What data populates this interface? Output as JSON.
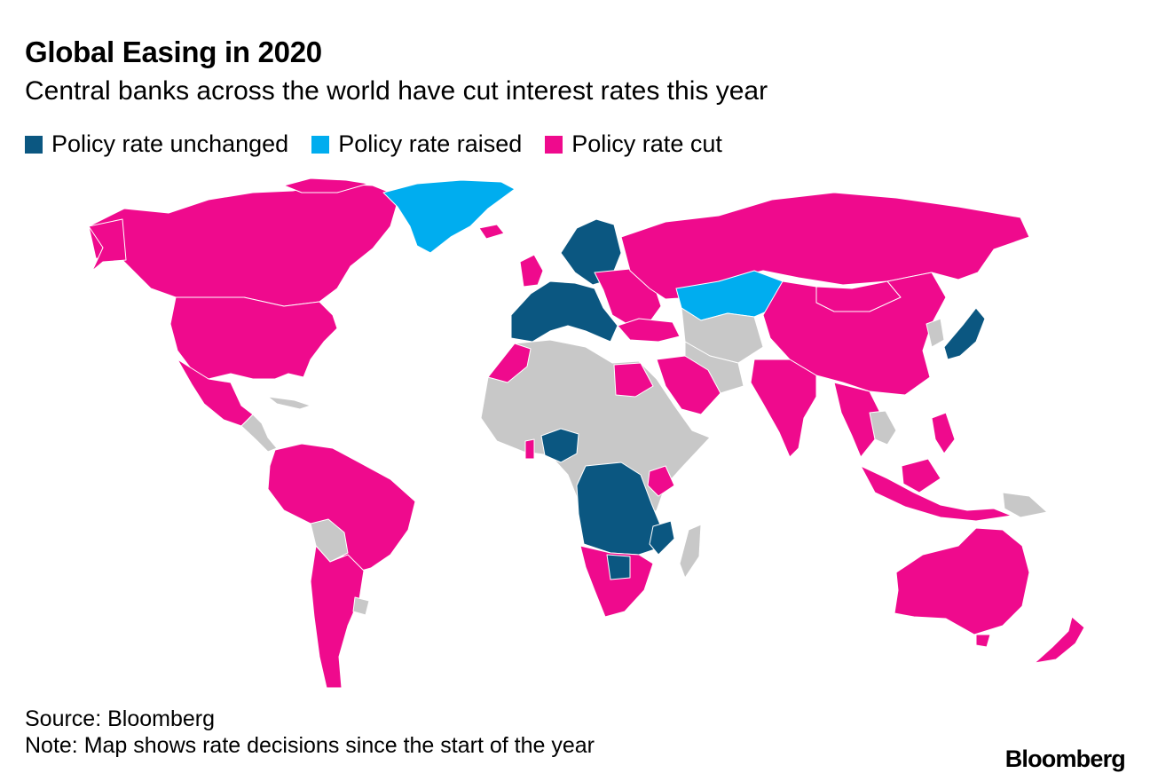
{
  "header": {
    "title": "Global Easing in 2020",
    "subtitle": "Central banks across the world have cut interest rates this year"
  },
  "legend": [
    {
      "label": "Policy rate unchanged",
      "color": "#0b5781"
    },
    {
      "label": "Policy rate raised",
      "color": "#00adef"
    },
    {
      "label": "Policy rate cut",
      "color": "#ef0a8d"
    }
  ],
  "colors": {
    "unchanged": "#0b5781",
    "raised": "#00adef",
    "cut": "#ef0a8d",
    "no_data": "#c8c8c8"
  },
  "map": {
    "regions": [
      {
        "name": "Canada",
        "status": "cut"
      },
      {
        "name": "United States",
        "status": "cut"
      },
      {
        "name": "Mexico",
        "status": "cut"
      },
      {
        "name": "Greenland",
        "status": "raised"
      },
      {
        "name": "Kazakhstan",
        "status": "raised"
      },
      {
        "name": "Russia",
        "status": "cut"
      },
      {
        "name": "China",
        "status": "cut"
      },
      {
        "name": "India",
        "status": "cut"
      },
      {
        "name": "Japan",
        "status": "unchanged"
      },
      {
        "name": "Euro area",
        "status": "unchanged"
      },
      {
        "name": "Nigeria",
        "status": "unchanged"
      },
      {
        "name": "Brazil",
        "status": "cut"
      },
      {
        "name": "Australia",
        "status": "cut"
      },
      {
        "name": "South Africa",
        "status": "cut"
      }
    ]
  },
  "footer": {
    "source": "Source: Bloomberg",
    "note": "Note: Map shows rate decisions since the start of the year",
    "brand": "Bloomberg"
  }
}
